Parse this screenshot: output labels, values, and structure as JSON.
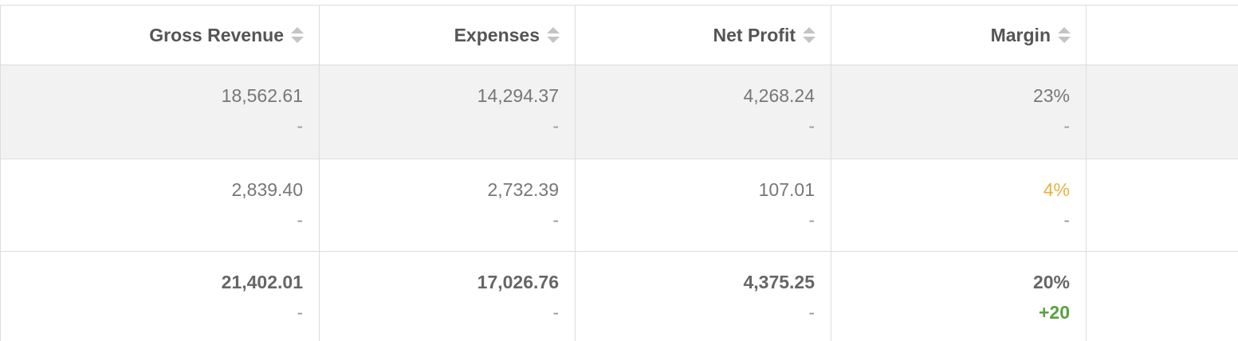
{
  "table": {
    "headers": [
      "Gross Revenue",
      "Expenses",
      "Net Profit",
      "Margin"
    ],
    "rows": [
      [
        {
          "value": "18,562.61",
          "change": "-"
        },
        {
          "value": "14,294.37",
          "change": "-"
        },
        {
          "value": "4,268.24",
          "change": "-"
        },
        {
          "value": "23%",
          "change": "-"
        }
      ],
      [
        {
          "value": "2,839.40",
          "change": "-"
        },
        {
          "value": "2,732.39",
          "change": "-"
        },
        {
          "value": "107.01",
          "change": "-"
        },
        {
          "value": "4%",
          "change": "-"
        }
      ],
      [
        {
          "value": "21,402.01",
          "change": "-"
        },
        {
          "value": "17,026.76",
          "change": "-"
        },
        {
          "value": "4,375.25",
          "change": "-"
        },
        {
          "value": "20%",
          "change": "+20"
        }
      ]
    ]
  }
}
